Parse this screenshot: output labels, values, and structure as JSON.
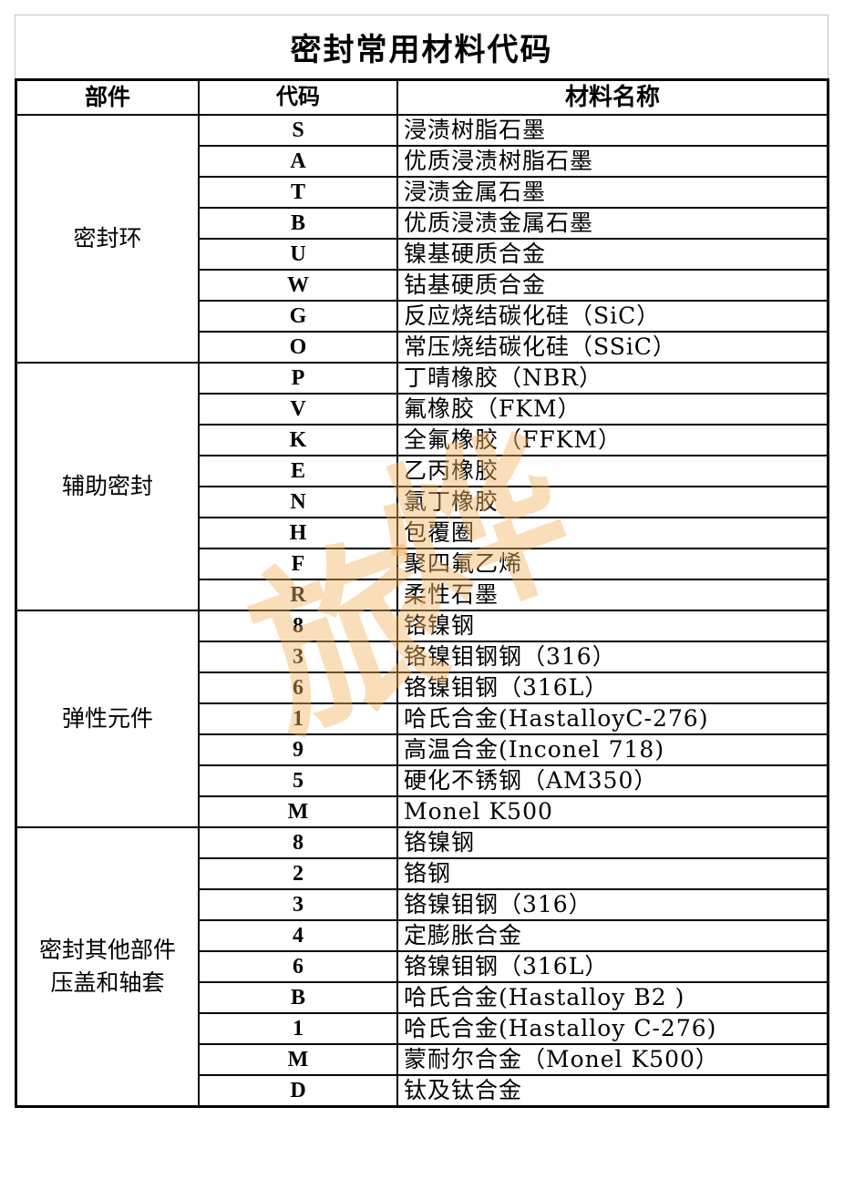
{
  "title": "密封常用材料代码",
  "headers": {
    "part": "部件",
    "code": "代码",
    "name": "材料名称"
  },
  "groups": [
    {
      "part": "密封环",
      "rows": [
        {
          "code": "S",
          "name": "浸渍树脂石墨"
        },
        {
          "code": "A",
          "name": "优质浸渍树脂石墨"
        },
        {
          "code": "T",
          "name": "浸渍金属石墨"
        },
        {
          "code": "B",
          "name": "优质浸渍金属石墨"
        },
        {
          "code": "U",
          "name": "镍基硬质合金"
        },
        {
          "code": "W",
          "name": "钴基硬质合金"
        },
        {
          "code": "G",
          "name": "反应烧结碳化硅（SiC）"
        },
        {
          "code": "O",
          "name": "常压烧结碳化硅（SSiC）"
        }
      ]
    },
    {
      "part": "辅助密封",
      "rows": [
        {
          "code": "P",
          "name": "丁晴橡胶（NBR）"
        },
        {
          "code": "V",
          "name": "氟橡胶（FKM）"
        },
        {
          "code": "K",
          "name": "全氟橡胶（FFKM）"
        },
        {
          "code": "E",
          "name": "乙丙橡胶"
        },
        {
          "code": "N",
          "name": "氯丁橡胶"
        },
        {
          "code": "H",
          "name": "包覆圈"
        },
        {
          "code": "F",
          "name": "聚四氟乙烯"
        },
        {
          "code": "R",
          "name": "柔性石墨"
        }
      ]
    },
    {
      "part": "弹性元件",
      "rows": [
        {
          "code": "8",
          "name": "铬镍钢"
        },
        {
          "code": "3",
          "name": "铬镍钼钢钢（316）"
        },
        {
          "code": "6",
          "name": "铬镍钼钢（316L）"
        },
        {
          "code": "1",
          "name": "哈氏合金(HastalloyC-276)"
        },
        {
          "code": "9",
          "name": "高温合金(Inconel 718)"
        },
        {
          "code": "5",
          "name": "硬化不锈钢（AM350）"
        },
        {
          "code": "M",
          "name": "Monel K500"
        }
      ]
    },
    {
      "part": "密封其他部件\n压盖和轴套",
      "rows": [
        {
          "code": "8",
          "name": "铬镍钢"
        },
        {
          "code": "2",
          "name": "铬钢"
        },
        {
          "code": "3",
          "name": "铬镍钼钢（316）"
        },
        {
          "code": "4",
          "name": "定膨胀合金"
        },
        {
          "code": "6",
          "name": "铬镍钼钢（316L）"
        },
        {
          "code": "B",
          "name": "哈氏合金(Hastalloy B2 )"
        },
        {
          "code": "1",
          "name": "哈氏合金(Hastalloy C-276)"
        },
        {
          "code": "M",
          "name": "蒙耐尔合金（Monel K500）"
        },
        {
          "code": "D",
          "name": "钛及钛合金"
        }
      ]
    }
  ],
  "watermark": "旅烨",
  "colors": {
    "watermark": "#f5b464",
    "title_border": "#b8cfc0"
  }
}
